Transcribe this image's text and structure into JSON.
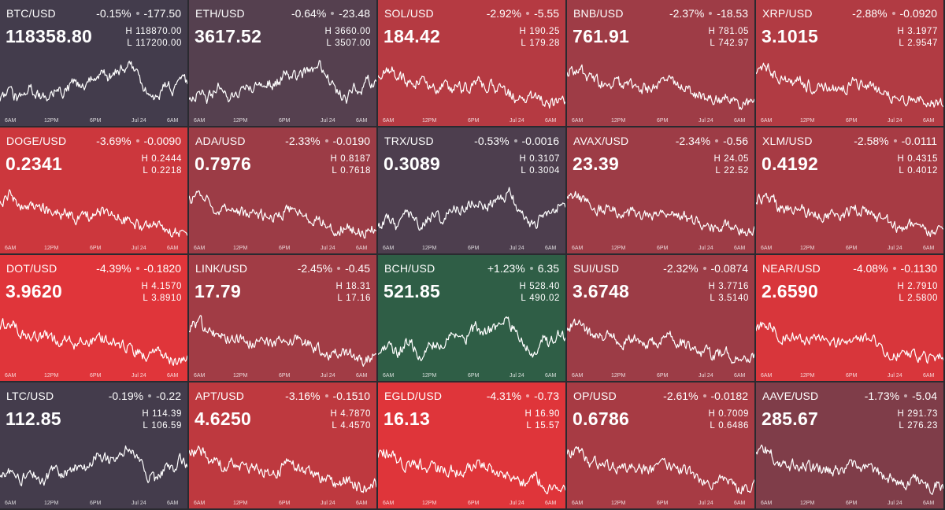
{
  "axis_labels": [
    "6AM",
    "12PM",
    "6PM",
    "Jul 24",
    "6AM"
  ],
  "high_prefix": "H",
  "low_prefix": "L",
  "tiles": [
    {
      "symbol": "BTC/USD",
      "pct": "-0.15%",
      "chg": "-177.50",
      "price": "118358.80",
      "high": "118870.00",
      "low": "117200.00",
      "color": "#433c4c",
      "trend": "btc"
    },
    {
      "symbol": "ETH/USD",
      "pct": "-0.64%",
      "chg": "-23.48",
      "price": "3617.52",
      "high": "3660.00",
      "low": "3507.00",
      "color": "#55404f",
      "trend": "btc"
    },
    {
      "symbol": "SOL/USD",
      "pct": "-2.92%",
      "chg": "-5.55",
      "price": "184.42",
      "high": "190.25",
      "low": "179.28",
      "color": "#b53a42",
      "trend": "down"
    },
    {
      "symbol": "BNB/USD",
      "pct": "-2.37%",
      "chg": "-18.53",
      "price": "761.91",
      "high": "781.05",
      "low": "742.97",
      "color": "#9e3c46",
      "trend": "down"
    },
    {
      "symbol": "XRP/USD",
      "pct": "-2.88%",
      "chg": "-0.0920",
      "price": "3.1015",
      "high": "3.1977",
      "low": "2.9547",
      "color": "#b13b43",
      "trend": "down"
    },
    {
      "symbol": "DOGE/USD",
      "pct": "-3.69%",
      "chg": "-0.0090",
      "price": "0.2341",
      "high": "0.2444",
      "low": "0.2218",
      "color": "#cc373d",
      "trend": "down"
    },
    {
      "symbol": "ADA/USD",
      "pct": "-2.33%",
      "chg": "-0.0190",
      "price": "0.7976",
      "high": "0.8187",
      "low": "0.7618",
      "color": "#9c3c46",
      "trend": "down"
    },
    {
      "symbol": "TRX/USD",
      "pct": "-0.53%",
      "chg": "-0.0016",
      "price": "0.3089",
      "high": "0.3107",
      "low": "0.3004",
      "color": "#4d3e4e",
      "trend": "btc"
    },
    {
      "symbol": "AVAX/USD",
      "pct": "-2.34%",
      "chg": "-0.56",
      "price": "23.39",
      "high": "24.05",
      "low": "22.52",
      "color": "#9d3c46",
      "trend": "down"
    },
    {
      "symbol": "XLM/USD",
      "pct": "-2.58%",
      "chg": "-0.0111",
      "price": "0.4192",
      "high": "0.4315",
      "low": "0.4012",
      "color": "#a73b44",
      "trend": "down"
    },
    {
      "symbol": "DOT/USD",
      "pct": "-4.39%",
      "chg": "-0.1820",
      "price": "3.9620",
      "high": "4.1570",
      "low": "3.8910",
      "color": "#e0353a",
      "trend": "down"
    },
    {
      "symbol": "LINK/USD",
      "pct": "-2.45%",
      "chg": "-0.45",
      "price": "17.79",
      "high": "18.31",
      "low": "17.16",
      "color": "#a13c45",
      "trend": "down"
    },
    {
      "symbol": "BCH/USD",
      "pct": "+1.23%",
      "chg": "6.35",
      "price": "521.85",
      "high": "528.40",
      "low": "490.02",
      "color": "#2f5e46",
      "trend": "btc"
    },
    {
      "symbol": "SUI/USD",
      "pct": "-2.32%",
      "chg": "-0.0874",
      "price": "3.6748",
      "high": "3.7716",
      "low": "3.5140",
      "color": "#9c3c46",
      "trend": "down"
    },
    {
      "symbol": "NEAR/USD",
      "pct": "-4.08%",
      "chg": "-0.1130",
      "price": "2.6590",
      "high": "2.7910",
      "low": "2.5800",
      "color": "#d8363b",
      "trend": "down"
    },
    {
      "symbol": "LTC/USD",
      "pct": "-0.19%",
      "chg": "-0.22",
      "price": "112.85",
      "high": "114.39",
      "low": "106.59",
      "color": "#443c4c",
      "trend": "btc"
    },
    {
      "symbol": "APT/USD",
      "pct": "-3.16%",
      "chg": "-0.1510",
      "price": "4.6250",
      "high": "4.7870",
      "low": "4.4570",
      "color": "#be393f",
      "trend": "down"
    },
    {
      "symbol": "EGLD/USD",
      "pct": "-4.31%",
      "chg": "-0.73",
      "price": "16.13",
      "high": "16.90",
      "low": "15.57",
      "color": "#df353a",
      "trend": "down"
    },
    {
      "symbol": "OP/USD",
      "pct": "-2.61%",
      "chg": "-0.0182",
      "price": "0.6786",
      "high": "0.7009",
      "low": "0.6486",
      "color": "#a73b44",
      "trend": "down"
    },
    {
      "symbol": "AAVE/USD",
      "pct": "-1.73%",
      "chg": "-5.04",
      "price": "285.67",
      "high": "291.73",
      "low": "276.23",
      "color": "#7f3d49",
      "trend": "down"
    }
  ]
}
